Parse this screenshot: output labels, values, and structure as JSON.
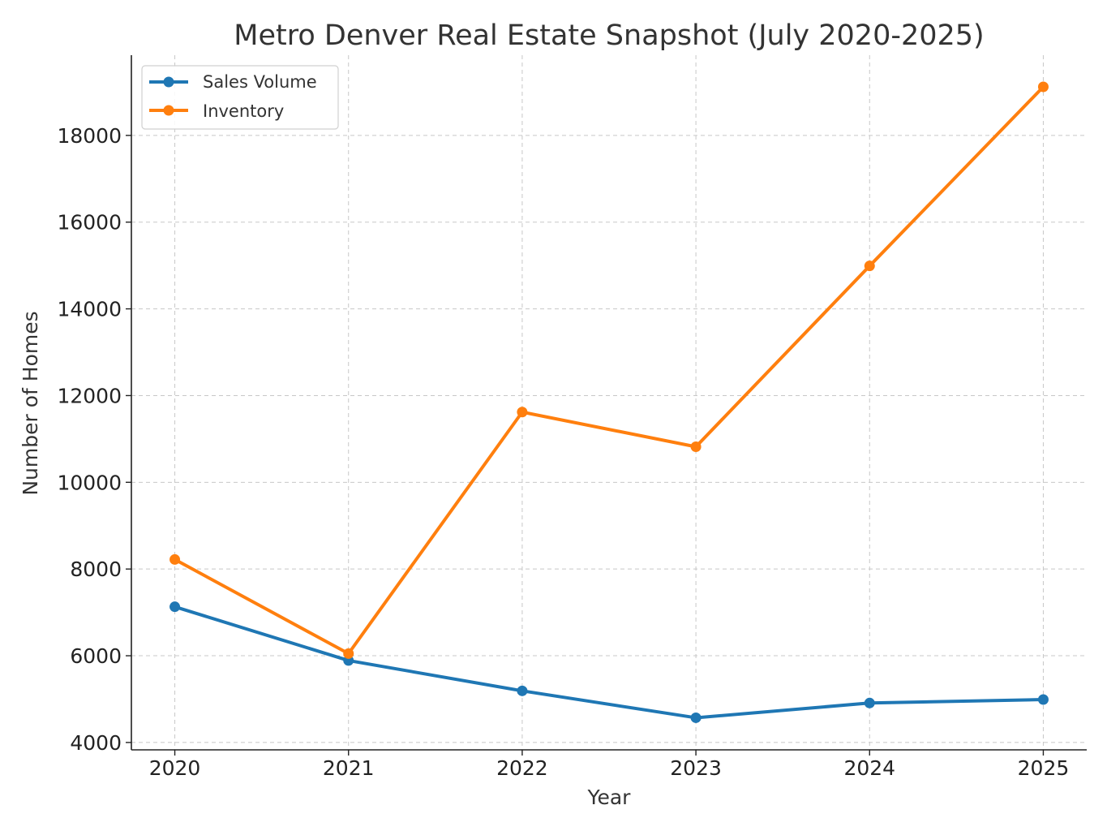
{
  "chart_data": {
    "type": "line",
    "title": "Metro Denver Real Estate Snapshot (July 2020-2025)",
    "xlabel": "Year",
    "ylabel": "Number of Homes",
    "x": [
      2020,
      2021,
      2022,
      2023,
      2024,
      2025
    ],
    "x_tick_labels": [
      "2020",
      "2021",
      "2022",
      "2023",
      "2024",
      "2025"
    ],
    "y_tick_values": [
      4000,
      6000,
      8000,
      10000,
      12000,
      14000,
      16000,
      18000
    ],
    "y_tick_labels": [
      "4000",
      "6000",
      "8000",
      "10000",
      "12000",
      "14000",
      "16000",
      "18000"
    ],
    "xlim": [
      2019.75,
      2025.25
    ],
    "ylim": [
      3830,
      19850
    ],
    "grid": true,
    "legend_position": "top-left",
    "series": [
      {
        "name": "Sales Volume",
        "color": "#1f77b4",
        "values": [
          7130,
          5890,
          5190,
          4570,
          4910,
          4990
        ]
      },
      {
        "name": "Inventory",
        "color": "#ff7f0e",
        "values": [
          8220,
          6050,
          11620,
          10820,
          14990,
          19120
        ]
      }
    ]
  }
}
